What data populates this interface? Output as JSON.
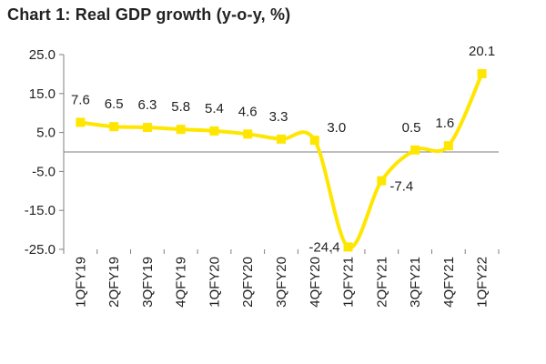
{
  "chart_data": {
    "type": "line",
    "title": "Chart 1: Real GDP growth (y-o-y, %)",
    "xlabel": "",
    "ylabel": "",
    "categories": [
      "1QFY19",
      "2QFY19",
      "3QFY19",
      "4QFY19",
      "1QFY20",
      "2QFY20",
      "3QFY20",
      "4QFY20",
      "1QFY21",
      "2QFY21",
      "3QFY21",
      "4QFY21",
      "1QFY22"
    ],
    "series": [
      {
        "name": "Real GDP growth",
        "values": [
          7.6,
          6.5,
          6.3,
          5.8,
          5.4,
          4.6,
          3.3,
          3.0,
          -24.4,
          -7.4,
          0.5,
          1.6,
          20.1
        ],
        "labels": [
          "7.6",
          "6.5",
          "6.3",
          "5.8",
          "5.4",
          "4.6",
          "3.3",
          "3.0",
          "-24.4",
          "-7.4",
          "0.5",
          "1.6",
          "20.1"
        ]
      }
    ],
    "ylim": [
      -25,
      25
    ],
    "yticks": [
      25,
      15,
      5,
      -5,
      -15,
      -25
    ],
    "ytick_labels": [
      "25.0",
      "15.0",
      "5.0",
      "-5.0",
      "-15.0",
      "-25.0"
    ],
    "grid": false,
    "legend": "none",
    "colors": {
      "line": "#FFE600",
      "axis": "#7f7f7f",
      "text": "#222222"
    }
  }
}
